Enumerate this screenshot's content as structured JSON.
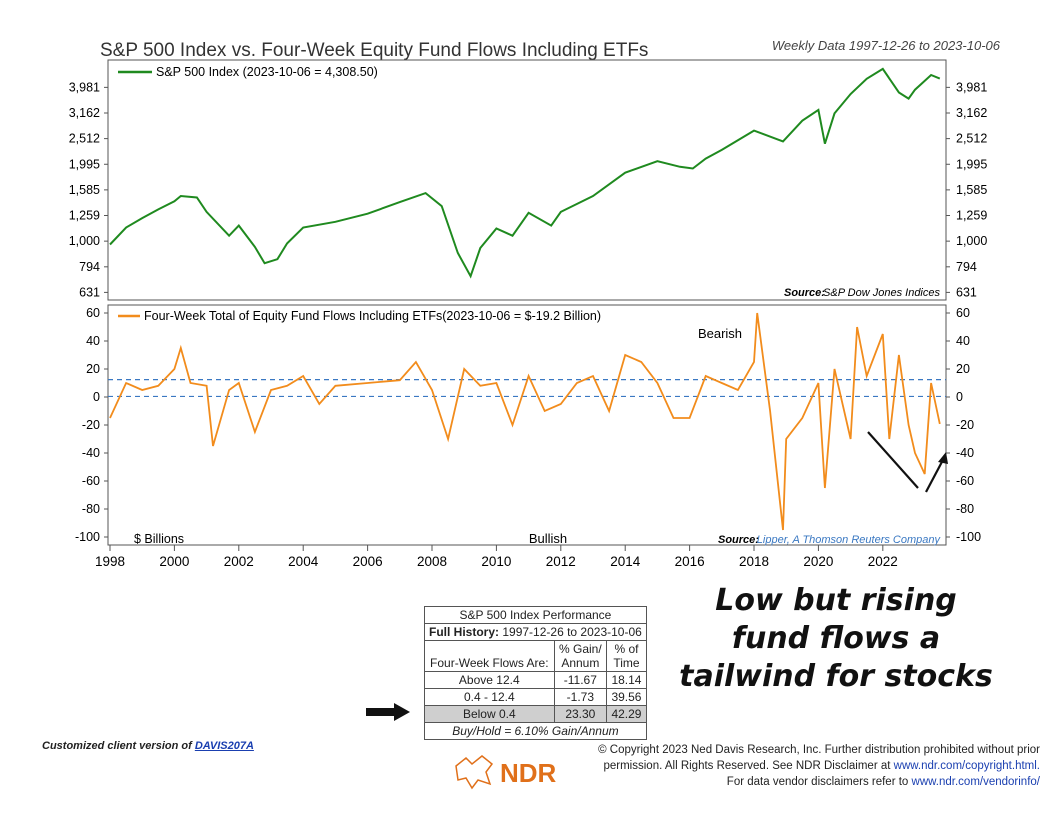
{
  "header": {
    "title": "S&P 500 Index vs. Four-Week Equity Fund Flows Including ETFs",
    "subtitle": "Weekly Data 1997-12-26 to 2023-10-06"
  },
  "colors": {
    "sp500": "#1f8a1f",
    "flows": "#f28c1c",
    "threshold": "#3a78c2"
  },
  "chart_data": [
    {
      "type": "line",
      "series": [
        {
          "name": "S&P 500 Index (2023-10-06 = 4,308.50)",
          "values_approx": "yearly sample"
        }
      ],
      "x": [
        1998.0,
        1998.5,
        1999.0,
        1999.5,
        2000.0,
        2000.2,
        2000.7,
        2001.0,
        2001.7,
        2002.0,
        2002.5,
        2002.8,
        2003.2,
        2003.5,
        2004.0,
        2005.0,
        2006.0,
        2007.0,
        2007.8,
        2008.3,
        2008.8,
        2009.2,
        2009.5,
        2010.0,
        2010.5,
        2011.0,
        2011.7,
        2012.0,
        2013.0,
        2014.0,
        2015.0,
        2015.7,
        2016.1,
        2016.5,
        2017.0,
        2018.0,
        2018.9,
        2019.5,
        2020.0,
        2020.2,
        2020.5,
        2021.0,
        2021.5,
        2022.0,
        2022.5,
        2022.8,
        2023.0,
        2023.5,
        2023.77
      ],
      "y": [
        970,
        1130,
        1230,
        1330,
        1430,
        1500,
        1480,
        1300,
        1050,
        1150,
        950,
        820,
        850,
        980,
        1130,
        1190,
        1280,
        1420,
        1540,
        1370,
        900,
        730,
        940,
        1120,
        1050,
        1290,
        1150,
        1300,
        1500,
        1850,
        2050,
        1950,
        1920,
        2100,
        2270,
        2700,
        2450,
        2950,
        3250,
        2400,
        3150,
        3750,
        4300,
        4700,
        3800,
        3600,
        3900,
        4450,
        4308.5
      ],
      "yticks": [
        "631",
        "794",
        "1,000",
        "1,259",
        "1,585",
        "1,995",
        "2,512",
        "3,162",
        "3,981"
      ],
      "scale": "log",
      "ylim": [
        600,
        5000
      ],
      "source_label": "Source:",
      "source": "S&P Dow Jones Indices"
    },
    {
      "type": "line",
      "series": [
        {
          "name": "Four-Week Total of Equity Fund Flows Including ETFs(2023-10-06 = $-19.2 Billion)"
        }
      ],
      "x": [
        1998.0,
        1998.5,
        1999.0,
        1999.5,
        2000.0,
        2000.2,
        2000.5,
        2001.0,
        2001.2,
        2001.7,
        2002.0,
        2002.5,
        2003.0,
        2003.5,
        2004.0,
        2004.5,
        2005.0,
        2006.0,
        2007.0,
        2007.5,
        2008.0,
        2008.5,
        2009.0,
        2009.5,
        2010.0,
        2010.5,
        2011.0,
        2011.5,
        2012.0,
        2012.5,
        2013.0,
        2013.5,
        2014.0,
        2014.5,
        2015.0,
        2015.5,
        2016.0,
        2016.5,
        2017.0,
        2017.5,
        2018.0,
        2018.1,
        2018.5,
        2018.9,
        2019.0,
        2019.5,
        2020.0,
        2020.2,
        2020.5,
        2021.0,
        2021.2,
        2021.5,
        2022.0,
        2022.2,
        2022.5,
        2022.8,
        2023.0,
        2023.3,
        2023.5,
        2023.77
      ],
      "y": [
        -15,
        10,
        5,
        8,
        20,
        35,
        10,
        8,
        -35,
        5,
        10,
        -25,
        5,
        8,
        15,
        -5,
        8,
        10,
        12,
        25,
        5,
        -30,
        20,
        8,
        10,
        -20,
        15,
        -10,
        -5,
        10,
        15,
        -10,
        30,
        25,
        10,
        -15,
        -15,
        15,
        10,
        5,
        25,
        60,
        -10,
        -95,
        -30,
        -15,
        10,
        -65,
        20,
        -30,
        50,
        15,
        45,
        -30,
        30,
        -20,
        -40,
        -55,
        10,
        -19.2
      ],
      "yticks": [
        "-100",
        "-80",
        "-60",
        "-40",
        "-20",
        "0",
        "20",
        "40",
        "60"
      ],
      "ylim": [
        -105,
        65
      ],
      "thresholds": [
        12.4,
        0.4
      ],
      "annot_top": "Bearish",
      "annot_bottom": "Bullish",
      "unit_label": "$ Billions",
      "source_label": "Source:",
      "source": "Lipper, A Thomson Reuters Company"
    }
  ],
  "xticks": [
    "1998",
    "2000",
    "2002",
    "2004",
    "2006",
    "2008",
    "2010",
    "2012",
    "2014",
    "2016",
    "2018",
    "2020",
    "2022"
  ],
  "table": {
    "title": "S&P 500 Index Performance",
    "history_label": "Full History:",
    "history_range": "1997-12-26 to 2023-10-06",
    "col1": "Four-Week Flows Are:",
    "col2a": "% Gain/",
    "col2b": "Annum",
    "col3a": "% of",
    "col3b": "Time",
    "rows": [
      {
        "label": "Above 12.4",
        "gain": "-11.67",
        "time": "18.14"
      },
      {
        "label": "0.4 - 12.4",
        "gain": "-1.73",
        "time": "39.56"
      },
      {
        "label": "Below 0.4",
        "gain": "23.30",
        "time": "42.29"
      }
    ],
    "footer": "Buy/Hold = 6.10% Gain/Annum"
  },
  "callout": "Low but rising fund flows a tailwind for stocks",
  "footer": {
    "custom_prefix": "Customized client version of ",
    "custom_link": "DAVIS207A",
    "copy1": "© Copyright 2023 Ned Davis Research, Inc. Further distribution prohibited without prior",
    "copy2a": "permission. All Rights Reserved. See NDR Disclaimer at ",
    "copy2b": "www.ndr.com/copyright.html.",
    "copy3a": "For data vendor disclaimers refer to ",
    "copy3b": "www.ndr.com/vendorinfo/",
    "logo_text": "NDR"
  }
}
